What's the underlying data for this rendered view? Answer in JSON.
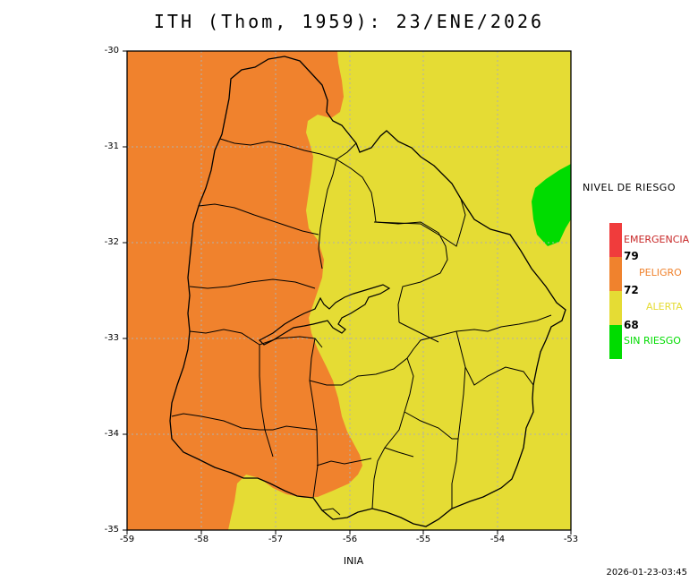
{
  "title": "ITH (Thom, 1959): 23/ENE/2026",
  "credit": "INIA",
  "timestamp": "2026-01-23-03:45",
  "axes": {
    "x_ticks": [
      "-59",
      "-58",
      "-57",
      "-56",
      "-55",
      "-54",
      "-53"
    ],
    "y_ticks": [
      "-30",
      "-31",
      "-32",
      "-33",
      "-34",
      "-35"
    ],
    "x_range": [
      -59,
      -53
    ],
    "y_range": [
      -35,
      -30
    ]
  },
  "legend": {
    "title": "NIVEL DE RIESGO",
    "levels": [
      {
        "label": "EMERGENCIA",
        "color": "#f03c3c",
        "text_color": "#c82828"
      },
      {
        "label": "PELIGRO",
        "color": "#f0822d",
        "text_color": "#f0822d"
      },
      {
        "label": "ALERTA",
        "color": "#e5dc34",
        "text_color": "#e5dc34"
      },
      {
        "label": "SIN RIESGO",
        "color": "#00dc00",
        "text_color": "#00dc00"
      }
    ],
    "thresholds": [
      "79",
      "72",
      "68"
    ]
  },
  "colors": {
    "peligro": "#f0822d",
    "alerta": "#e5dc34",
    "sin_riesgo": "#00dc00",
    "grid": "#b0b0b0",
    "border": "#000000"
  }
}
